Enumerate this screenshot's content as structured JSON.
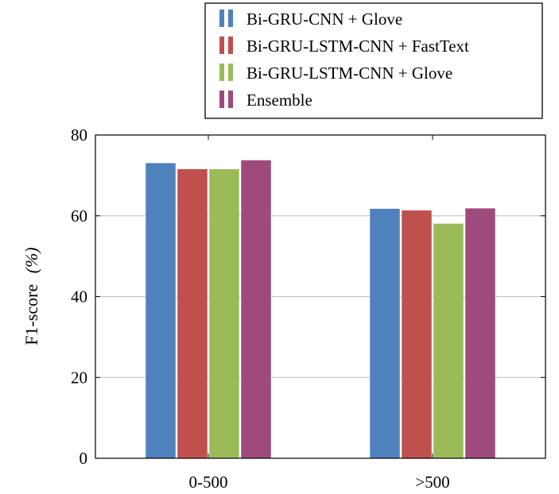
{
  "chart_data": {
    "type": "bar",
    "title": "",
    "xlabel": "",
    "ylabel": "F1-score",
    "ylabel_unit": "(%)",
    "categories": [
      "0-500",
      ">500"
    ],
    "ylim": [
      0,
      80
    ],
    "yticks": [
      "0",
      "20",
      "40",
      "60",
      "80"
    ],
    "grid": "horizontal",
    "legend_position": "top-right, outside plot",
    "series": [
      {
        "name": "Bi-GRU-CNN + Glove",
        "color": "#4f81bd",
        "values": [
          73.1,
          61.8
        ]
      },
      {
        "name": "Bi-GRU-LSTM-CNN + FastText",
        "color": "#c0504d",
        "values": [
          71.6,
          61.4
        ]
      },
      {
        "name": "Bi-GRU-LSTM-CNN + Glove",
        "color": "#9bbb59",
        "values": [
          71.6,
          58.1
        ]
      },
      {
        "name": "Ensemble",
        "color": "#9e4a7c",
        "values": [
          73.8,
          61.9
        ]
      }
    ]
  }
}
